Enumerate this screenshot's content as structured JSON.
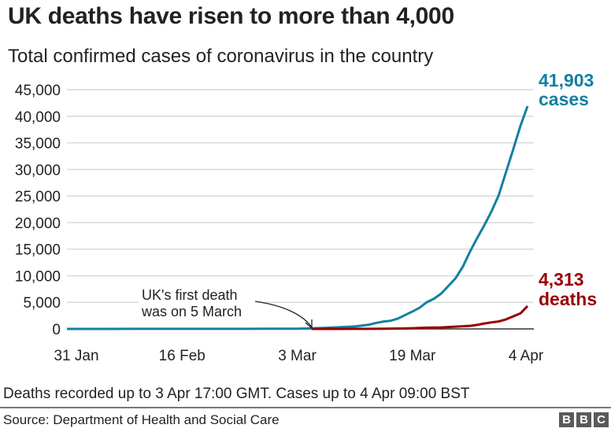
{
  "header": {
    "title": "UK deaths have risen to more than 4,000",
    "subtitle": "Total confirmed cases of coronavirus in the country"
  },
  "footer": {
    "note": "Deaths recorded up to 3 Apr 17:00 GMT. Cases up to 4 Apr 09:00 BST",
    "source": "Source: Department of Health and Social Care",
    "logo_letters": [
      "B",
      "B",
      "C"
    ]
  },
  "colors": {
    "cases": "#1380A1",
    "deaths": "#990000",
    "grid": "#d9d9d9",
    "axis": "#333333"
  },
  "chart_data": {
    "type": "line",
    "title": "UK deaths have risen to more than 4,000",
    "subtitle": "Total confirmed cases of coronavirus in the country",
    "xlabel": "",
    "ylabel": "",
    "x_unit": "days since 31 Jan",
    "xlim": [
      0,
      64
    ],
    "ylim": [
      0,
      45000
    ],
    "grid": true,
    "yticks": [
      0,
      5000,
      10000,
      15000,
      20000,
      25000,
      30000,
      35000,
      40000,
      45000
    ],
    "ytick_labels": [
      "0",
      "5,000",
      "10,000",
      "15,000",
      "20,000",
      "25,000",
      "30,000",
      "35,000",
      "40,000",
      "45,000"
    ],
    "xticks": [
      0,
      16,
      32,
      48,
      64
    ],
    "xtick_labels": [
      "31 Jan",
      "16 Feb",
      "3 Mar",
      "19 Mar",
      "4 Apr"
    ],
    "series": [
      {
        "name": "cases",
        "end_label_value": "41,903",
        "end_label_text": "cases",
        "x": [
          0,
          10,
          20,
          25,
          28,
          30,
          32,
          34,
          36,
          38,
          40,
          42,
          43,
          44,
          45,
          46,
          47,
          48,
          49,
          50,
          51,
          52,
          53,
          54,
          55,
          56,
          57,
          58,
          59,
          60,
          61,
          62,
          63,
          64
        ],
        "y": [
          2,
          8,
          9,
          13,
          23,
          36,
          51,
          116,
          206,
          319,
          456,
          798,
          1140,
          1391,
          1543,
          1950,
          2626,
          3269,
          3983,
          5018,
          5683,
          6650,
          8077,
          9529,
          11658,
          14543,
          17089,
          19522,
          22141,
          25150,
          29474,
          33718,
          38168,
          41903
        ]
      },
      {
        "name": "deaths",
        "end_label_value": "4,313",
        "end_label_text": "deaths",
        "x": [
          34,
          36,
          38,
          40,
          42,
          44,
          46,
          48,
          50,
          52,
          54,
          56,
          57,
          58,
          59,
          60,
          61,
          62,
          63,
          64
        ],
        "y": [
          1,
          2,
          6,
          8,
          21,
          35,
          71,
          137,
          233,
          281,
          422,
          578,
          759,
          1019,
          1228,
          1408,
          1789,
          2352,
          2921,
          4313
        ]
      }
    ],
    "annotations": [
      {
        "text_line1": "UK's first death",
        "text_line2": "was on 5 March",
        "x": 34,
        "y": 0
      }
    ]
  }
}
